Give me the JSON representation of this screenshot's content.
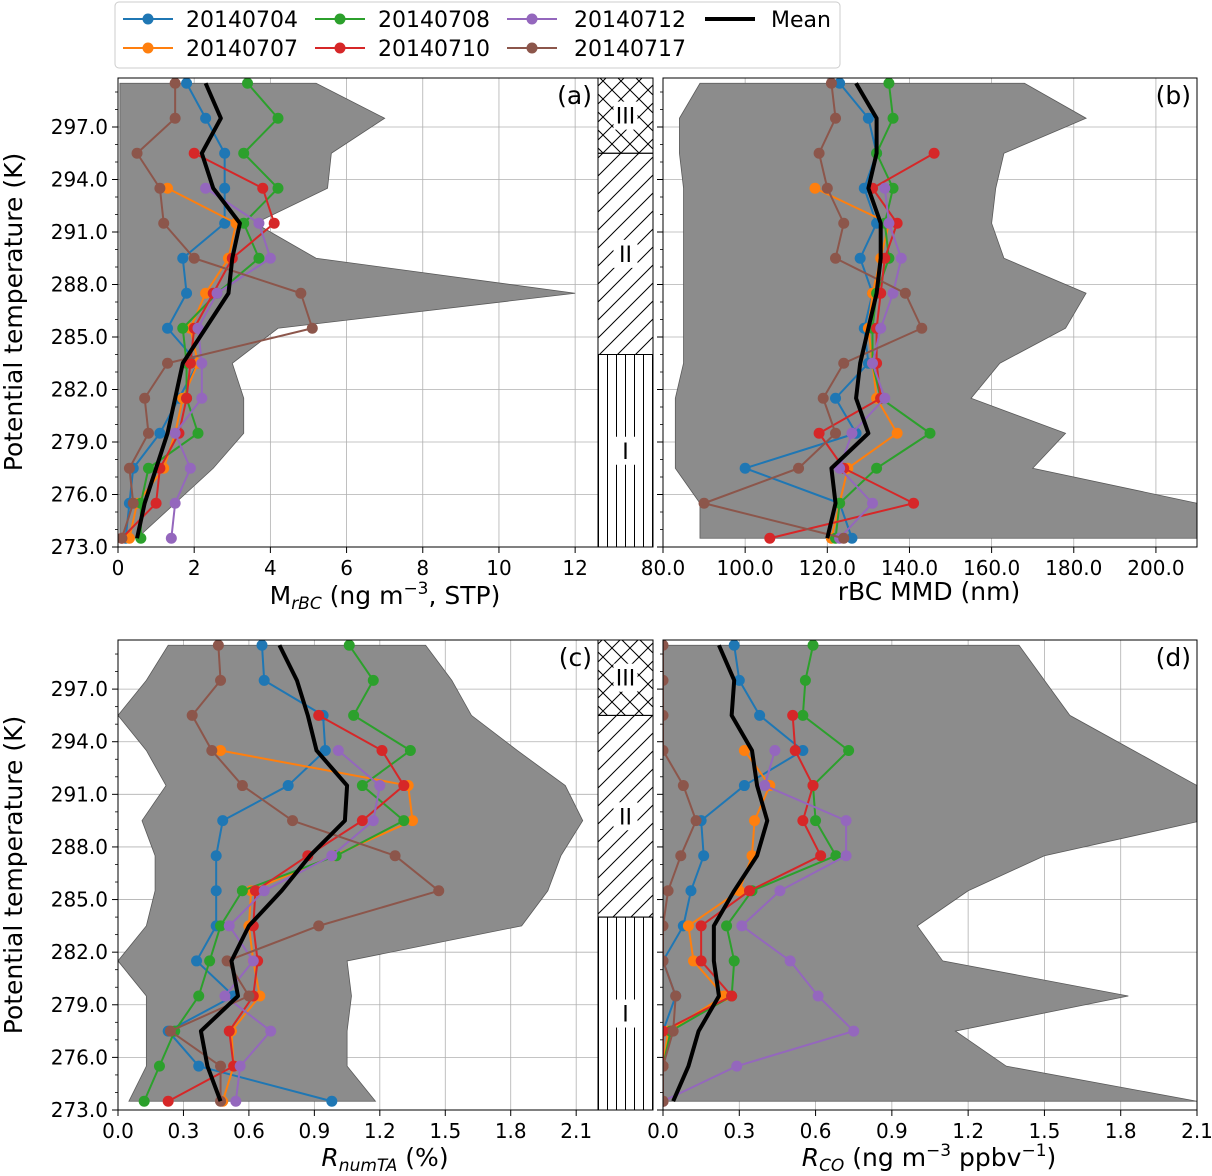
{
  "figure": {
    "legend": [
      {
        "label": "20140704",
        "color": "#1f77b4",
        "kind": "marker"
      },
      {
        "label": "20140707",
        "color": "#ff7f0e",
        "kind": "marker"
      },
      {
        "label": "20140708",
        "color": "#2ca02c",
        "kind": "marker"
      },
      {
        "label": "20140710",
        "color": "#d62728",
        "kind": "marker"
      },
      {
        "label": "20140712",
        "color": "#9467bd",
        "kind": "marker"
      },
      {
        "label": "20140717",
        "color": "#8c564b",
        "kind": "marker"
      },
      {
        "label": "Mean",
        "color": "#000000",
        "kind": "line"
      }
    ],
    "envelope_color": "#8c8c8c",
    "layers": [
      {
        "label": "III",
        "range": [
          295.5,
          300
        ],
        "hatch": "cross"
      },
      {
        "label": "II",
        "range": [
          284.0,
          295.5
        ],
        "hatch": "diagonal"
      },
      {
        "label": "I",
        "range": [
          270,
          284.0
        ],
        "hatch": "vertical"
      }
    ]
  },
  "chart_data": [
    {
      "id": "a",
      "type": "line",
      "panel_label": "(a)",
      "xlabel_main": "M",
      "xlabel_sub": "rBC",
      "xlabel_rest": " (ng m",
      "xlabel_sup": "−3",
      "xlabel_end": ", STP)",
      "ylabel": "Potential temperature (K)",
      "xlim": [
        0,
        12.6
      ],
      "ylim": [
        273,
        299.8
      ],
      "xticks": [
        0,
        2,
        4,
        6,
        8,
        10,
        12
      ],
      "xtick_labels": [
        "0",
        "2",
        "4",
        "6",
        "8",
        "10",
        "12"
      ],
      "yticks": [
        273,
        276,
        279,
        282,
        285,
        288,
        291,
        294,
        297
      ],
      "ytick_labels": [
        "273.0",
        "276.0",
        "279.0",
        "282.0",
        "285.0",
        "288.0",
        "291.0",
        "294.0",
        "297.0"
      ],
      "levels": [
        273.5,
        275.5,
        277.5,
        279.5,
        281.5,
        283.5,
        285.5,
        287.5,
        289.5,
        291.5,
        293.5,
        295.5,
        297.5,
        299.5
      ],
      "series": [
        {
          "name": "20140704",
          "values": [
            0.2,
            0.3,
            0.4,
            1.1,
            1.6,
            2.1,
            1.3,
            1.8,
            1.7,
            2.8,
            2.8,
            2.8,
            2.3,
            1.8
          ]
        },
        {
          "name": "20140707",
          "values": [
            0.3,
            0.5,
            1.2,
            1.5,
            1.7,
            2.1,
            1.9,
            2.3,
            2.9,
            3.1,
            1.3,
            null,
            null,
            null
          ]
        },
        {
          "name": "20140708",
          "values": [
            0.6,
            0.6,
            0.8,
            2.1,
            1.8,
            1.8,
            1.7,
            2.6,
            3.7,
            3.3,
            4.2,
            3.3,
            4.2,
            3.4
          ]
        },
        {
          "name": "20140710",
          "values": [
            0.1,
            1.0,
            1.1,
            1.6,
            1.8,
            1.9,
            2.0,
            2.5,
            3.0,
            4.1,
            3.8,
            2.0,
            null,
            null
          ]
        },
        {
          "name": "20140712",
          "values": [
            1.4,
            1.5,
            1.9,
            1.5,
            2.2,
            2.2,
            2.1,
            2.6,
            4.0,
            3.7,
            2.3,
            null,
            null,
            null
          ]
        },
        {
          "name": "20140717",
          "values": [
            0.1,
            0.4,
            0.3,
            0.8,
            0.7,
            1.3,
            5.1,
            4.8,
            2.0,
            1.2,
            1.1,
            0.5,
            1.5,
            1.5
          ]
        },
        {
          "name": "Mean",
          "values": [
            0.5,
            0.7,
            1.0,
            1.3,
            1.5,
            1.7,
            2.3,
            2.9,
            3.0,
            3.2,
            2.5,
            2.2,
            2.7,
            2.3
          ]
        }
      ],
      "envelope_min": [
        0.05,
        0.05,
        0.05,
        0.05,
        0.05,
        0.05,
        0.05,
        0.05,
        0.05,
        0.05,
        0.05,
        0.05,
        0.05,
        0.05
      ],
      "envelope_max": [
        0.5,
        1.5,
        2.5,
        3.3,
        3.3,
        3.0,
        4.2,
        12.0,
        5.2,
        3.6,
        5.5,
        5.6,
        7.0,
        5.2
      ]
    },
    {
      "id": "b",
      "type": "line",
      "panel_label": "(b)",
      "xlabel": "rBC MMD (nm)",
      "xlim": [
        80,
        210
      ],
      "ylim": [
        273,
        299.8
      ],
      "xticks": [
        80,
        100,
        120,
        140,
        160,
        180,
        200
      ],
      "xtick_labels": [
        "80.0",
        "100.0",
        "120.0",
        "140.0",
        "160.0",
        "180.0",
        "200.0"
      ],
      "yticks": [
        273,
        276,
        279,
        282,
        285,
        288,
        291,
        294,
        297
      ],
      "levels": [
        273.5,
        275.5,
        277.5,
        279.5,
        281.5,
        283.5,
        285.5,
        287.5,
        289.5,
        291.5,
        293.5,
        295.5,
        297.5,
        299.5
      ],
      "series": [
        {
          "name": "20140704",
          "values": [
            126,
            123,
            100,
            127,
            122,
            130,
            129,
            131,
            128,
            132,
            129,
            132,
            130,
            123
          ]
        },
        {
          "name": "20140707",
          "values": [
            121,
            123,
            125,
            137,
            132,
            131,
            130,
            131,
            133,
            135,
            117,
            null,
            null,
            null
          ]
        },
        {
          "name": "20140708",
          "values": [
            122,
            123,
            132,
            145,
            133,
            131,
            131,
            132,
            135,
            134,
            136,
            132,
            136,
            135
          ]
        },
        {
          "name": "20140710",
          "values": [
            106,
            141,
            124,
            118,
            133,
            132,
            132,
            133,
            134,
            137,
            131,
            146,
            null,
            null
          ]
        },
        {
          "name": "20140712",
          "values": [
            123,
            131,
            123,
            126,
            134,
            131,
            133,
            136,
            138,
            135,
            134,
            null,
            null,
            null
          ]
        },
        {
          "name": "20140717",
          "values": [
            124,
            90,
            113,
            122,
            119,
            124,
            143,
            139,
            122,
            124,
            120,
            118,
            122,
            121
          ]
        },
        {
          "name": "Mean",
          "values": [
            120,
            122,
            121,
            130,
            127,
            128,
            130,
            132,
            133,
            133,
            130,
            132,
            132,
            127
          ]
        }
      ],
      "envelope_min": [
        89,
        89,
        83,
        83,
        83,
        85,
        85,
        85,
        85,
        85,
        85,
        84,
        84,
        89
      ],
      "envelope_max": [
        210,
        210,
        170,
        178,
        155,
        162,
        178,
        183,
        163,
        160,
        161,
        163,
        183,
        168
      ]
    },
    {
      "id": "c",
      "type": "line",
      "panel_label": "(c)",
      "xlabel_main": "R",
      "xlabel_sub": "numTA",
      "xlabel_rest": " (%)",
      "ylabel": "Potential temperature (K)",
      "xlim": [
        0,
        2.2
      ],
      "ylim": [
        273,
        299.8
      ],
      "xticks": [
        0,
        0.3,
        0.6,
        0.9,
        1.2,
        1.5,
        1.8,
        2.1
      ],
      "xtick_labels": [
        "0.0",
        "0.3",
        "0.6",
        "0.9",
        "1.2",
        "1.5",
        "1.8",
        "2.1"
      ],
      "yticks": [
        273,
        276,
        279,
        282,
        285,
        288,
        291,
        294,
        297
      ],
      "levels": [
        273.5,
        275.5,
        277.5,
        279.5,
        281.5,
        283.5,
        285.5,
        287.5,
        289.5,
        291.5,
        293.5,
        295.5,
        297.5,
        299.5
      ],
      "series": [
        {
          "name": "20140704",
          "values": [
            0.98,
            0.37,
            0.23,
            0.53,
            0.36,
            0.45,
            0.45,
            0.45,
            0.48,
            0.78,
            0.95,
            0.94,
            0.67,
            0.66
          ]
        },
        {
          "name": "20140707",
          "values": [
            0.48,
            0.53,
            0.52,
            0.65,
            0.62,
            0.6,
            0.61,
            0.99,
            1.35,
            1.33,
            0.47,
            null,
            null,
            null
          ]
        },
        {
          "name": "20140708",
          "values": [
            0.12,
            0.19,
            0.26,
            0.37,
            0.42,
            0.47,
            0.57,
            1.0,
            1.31,
            1.12,
            1.34,
            1.08,
            1.17,
            1.06
          ]
        },
        {
          "name": "20140710",
          "values": [
            0.23,
            0.53,
            0.51,
            0.62,
            0.64,
            0.62,
            0.63,
            0.87,
            1.12,
            1.31,
            1.21,
            0.92,
            null,
            null
          ]
        },
        {
          "name": "20140712",
          "values": [
            0.54,
            0.56,
            0.7,
            0.49,
            0.62,
            0.51,
            0.67,
            0.98,
            1.17,
            1.2,
            1.01,
            null,
            null,
            null
          ]
        },
        {
          "name": "20140717",
          "values": [
            0.47,
            0.47,
            0.24,
            0.6,
            0.5,
            0.92,
            1.47,
            1.27,
            0.8,
            0.57,
            0.43,
            0.34,
            0.47,
            0.46
          ]
        },
        {
          "name": "Mean",
          "values": [
            0.47,
            0.41,
            0.38,
            0.55,
            0.52,
            0.6,
            0.75,
            0.88,
            1.04,
            1.05,
            0.91,
            0.87,
            0.82,
            0.74
          ]
        }
      ],
      "envelope_min": [
        0.05,
        0.13,
        0.13,
        0.13,
        0.0,
        0.13,
        0.17,
        0.17,
        0.11,
        0.22,
        0.13,
        0.0,
        0.13,
        0.23
      ],
      "envelope_max": [
        1.18,
        1.05,
        1.05,
        1.07,
        1.05,
        1.85,
        1.97,
        2.03,
        2.13,
        2.05,
        1.83,
        1.62,
        1.53,
        1.41
      ]
    },
    {
      "id": "d",
      "type": "line",
      "panel_label": "(d)",
      "xlabel_main": "R",
      "xlabel_sub": "CO",
      "xlabel_rest": " (ng m",
      "xlabel_sup": "−3",
      "xlabel_end": " ppbv",
      "xlabel_sup2": "−1",
      "xlabel_close": ")",
      "xlim": [
        0,
        2.1
      ],
      "ylim": [
        273,
        299.8
      ],
      "xticks": [
        0,
        0.3,
        0.6,
        0.9,
        1.2,
        1.5,
        1.8,
        2.1
      ],
      "xtick_labels": [
        "0.0",
        "0.3",
        "0.6",
        "0.9",
        "1.2",
        "1.5",
        "1.8",
        "2.1"
      ],
      "yticks": [
        273,
        276,
        279,
        282,
        285,
        288,
        291,
        294,
        297
      ],
      "levels": [
        273.5,
        275.5,
        277.5,
        279.5,
        281.5,
        283.5,
        285.5,
        287.5,
        289.5,
        291.5,
        293.5,
        295.5,
        297.5,
        299.5
      ],
      "series": [
        {
          "name": "20140704",
          "values": [
            0.0,
            0.0,
            0.0,
            0.05,
            0.0,
            0.08,
            0.11,
            0.16,
            0.15,
            0.32,
            0.55,
            0.38,
            0.3,
            0.28
          ]
        },
        {
          "name": "20140707",
          "values": [
            0.0,
            0.0,
            0.02,
            0.24,
            0.12,
            0.1,
            0.3,
            0.35,
            0.36,
            0.42,
            0.32,
            null,
            null,
            null
          ]
        },
        {
          "name": "20140708",
          "values": [
            0.0,
            0.0,
            0.03,
            0.27,
            0.28,
            0.25,
            0.35,
            0.68,
            0.6,
            0.59,
            0.73,
            0.55,
            0.56,
            0.59
          ]
        },
        {
          "name": "20140710",
          "values": [
            0.0,
            0.0,
            0.0,
            0.27,
            0.15,
            0.15,
            0.34,
            0.62,
            0.55,
            0.59,
            0.52,
            0.51,
            null,
            null
          ]
        },
        {
          "name": "20140712",
          "values": [
            0.0,
            0.29,
            0.75,
            0.61,
            0.5,
            0.31,
            0.46,
            0.72,
            0.72,
            0.4,
            0.44,
            null,
            null,
            null
          ]
        },
        {
          "name": "20140717",
          "values": [
            0.0,
            0.0,
            0.04,
            0.05,
            0.0,
            0.0,
            0.02,
            0.07,
            0.13,
            0.08,
            0.0,
            0.0,
            0.0,
            0.0
          ]
        },
        {
          "name": "Mean",
          "values": [
            0.04,
            0.1,
            0.14,
            0.22,
            0.2,
            0.2,
            0.28,
            0.37,
            0.41,
            0.37,
            0.35,
            0.27,
            0.28,
            0.22
          ]
        }
      ],
      "envelope_min": [
        0.0,
        0.0,
        0.0,
        0.0,
        0.0,
        0.0,
        0.0,
        0.0,
        0.0,
        0.0,
        0.0,
        0.0,
        0.0,
        0.0
      ],
      "envelope_max": [
        2.1,
        1.35,
        1.15,
        1.83,
        1.1,
        1.0,
        1.2,
        1.5,
        2.12,
        2.1,
        1.85,
        1.6,
        1.5,
        1.4
      ]
    }
  ]
}
